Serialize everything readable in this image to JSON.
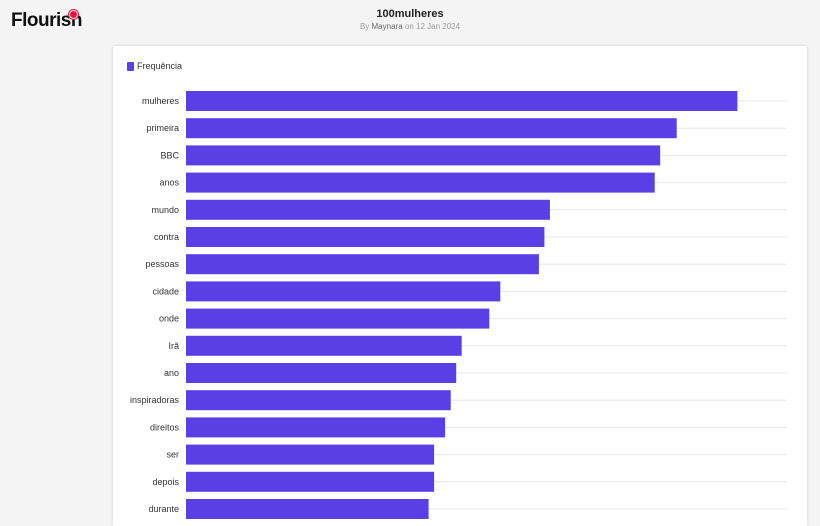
{
  "header": {
    "brand": "Flourish",
    "title": "100mulheres",
    "by_prefix": "By",
    "author": "Maynara",
    "date_text": "on 12 Jan 2024"
  },
  "colors": {
    "bar": "#5a3ee6",
    "grid": "#e6e6e6",
    "brand_dot": "#e8173a"
  },
  "chart_data": {
    "type": "bar",
    "orientation": "horizontal",
    "title": "",
    "xlabel": "",
    "ylabel": "",
    "legend_position": "top-left",
    "series": [
      {
        "name": "Frequência",
        "values": [
          100,
          89,
          86,
          85,
          66,
          65,
          64,
          57,
          55,
          50,
          49,
          48,
          47,
          45,
          45,
          44
        ]
      }
    ],
    "categories": [
      "mulheres",
      "primeira",
      "BBC",
      "anos",
      "mundo",
      "contra",
      "pessoas",
      "cidade",
      "onde",
      "Irã",
      "ano",
      "inspiradoras",
      "direitos",
      "ser",
      "depois",
      "durante"
    ],
    "xlim": [
      0,
      109
    ],
    "grid": true
  }
}
